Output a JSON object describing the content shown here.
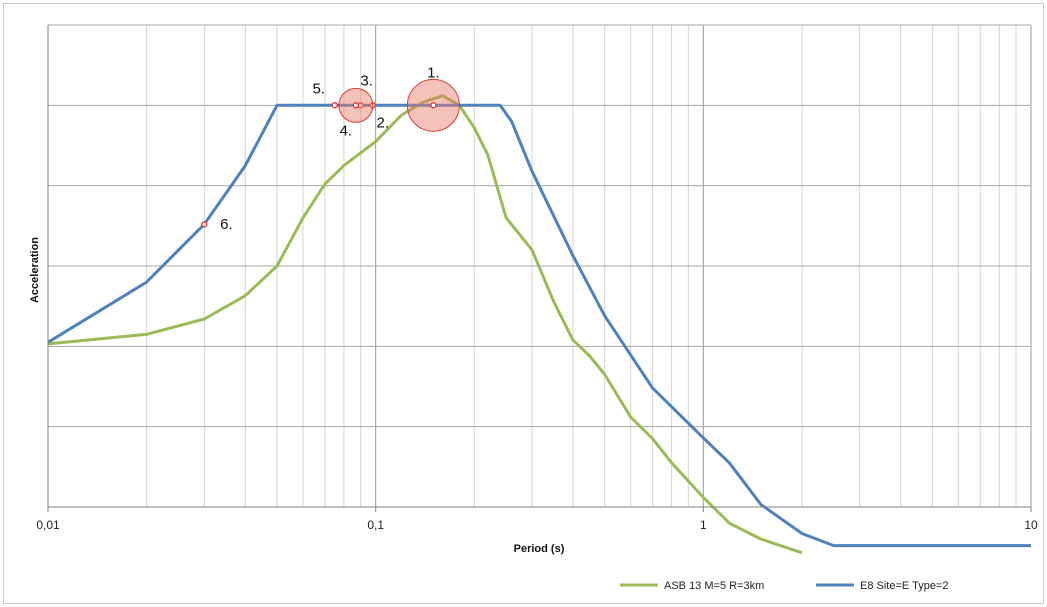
{
  "chart_data": {
    "type": "line",
    "title": "",
    "xlabel": "Period (s)",
    "ylabel": "Acceleration",
    "x_scale": "log",
    "xlim": [
      0.01,
      10
    ],
    "ylim": [
      0,
      6
    ],
    "x_ticks": [
      {
        "value": 0.01,
        "label": "0,01"
      },
      {
        "value": 0.1,
        "label": "0,1"
      },
      {
        "value": 1,
        "label": "1"
      },
      {
        "value": 10,
        "label": "10"
      }
    ],
    "y_gridlines": [
      1,
      2,
      3,
      4,
      5
    ],
    "grid": true,
    "legend_position": "bottom-right",
    "series": [
      {
        "name": "ASB 13 M=5 R=3km",
        "color": "#9bbb59",
        "x": [
          0.01,
          0.02,
          0.03,
          0.04,
          0.05,
          0.06,
          0.07,
          0.08,
          0.1,
          0.12,
          0.14,
          0.16,
          0.18,
          0.2,
          0.22,
          0.25,
          0.3,
          0.35,
          0.4,
          0.45,
          0.5,
          0.6,
          0.7,
          0.8,
          1.0,
          1.2,
          1.5,
          2.0
        ],
        "y": [
          2.03,
          2.15,
          2.34,
          2.63,
          3.0,
          3.6,
          4.02,
          4.25,
          4.55,
          4.88,
          5.04,
          5.12,
          5.0,
          4.72,
          4.38,
          3.6,
          3.2,
          2.55,
          2.08,
          1.88,
          1.65,
          1.12,
          0.85,
          0.55,
          0.12,
          -0.2,
          -0.4,
          -0.57
        ]
      },
      {
        "name": "E8 Site=E Type=2",
        "color": "#4f81bd",
        "x": [
          0.01,
          0.02,
          0.03,
          0.04,
          0.05,
          0.06,
          0.08,
          0.1,
          0.12,
          0.15,
          0.2,
          0.24,
          0.26,
          0.3,
          0.4,
          0.5,
          0.7,
          1.0,
          1.2,
          1.5,
          2.0,
          2.5,
          5.0,
          10.0
        ],
        "y": [
          2.05,
          2.8,
          3.52,
          4.25,
          5.0,
          5.0,
          5.0,
          5.0,
          5.0,
          5.0,
          5.0,
          5.0,
          4.8,
          4.18,
          3.13,
          2.38,
          1.48,
          0.86,
          0.55,
          0.03,
          -0.33,
          -0.48,
          -0.48,
          -0.48
        ]
      }
    ],
    "annotations": [
      {
        "label": "1.",
        "x": 0.15,
        "y": 5.0,
        "circle": true,
        "circle_radius_rel": "large"
      },
      {
        "label": "2.",
        "x": 0.098,
        "y": 5.0,
        "circle": false
      },
      {
        "label": "3.",
        "x": 0.09,
        "y": 5.0,
        "circle": false
      },
      {
        "label": "4.",
        "x": 0.087,
        "y": 5.0,
        "circle": true,
        "circle_radius_rel": "small"
      },
      {
        "label": "5.",
        "x": 0.075,
        "y": 5.0,
        "circle": false
      },
      {
        "label": "6.",
        "x": 0.03,
        "y": 3.52,
        "circle": false
      }
    ]
  }
}
